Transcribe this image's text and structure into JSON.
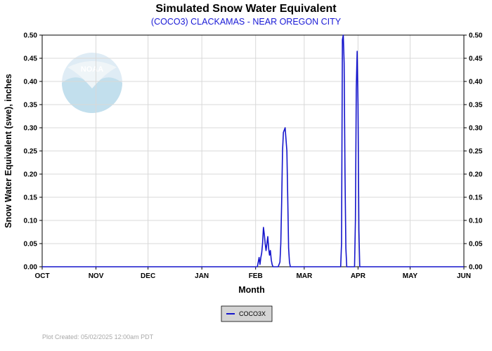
{
  "chart_data": {
    "type": "line",
    "title": "Simulated Snow Water Equivalent",
    "subtitle": "(COCO3) CLACKAMAS - NEAR OREGON CITY",
    "xlabel": "Month",
    "ylabel": "Snow Water Equivalent (swe),  inches",
    "x_tick_labels": [
      "OCT",
      "NOV",
      "DEC",
      "JAN",
      "FEB",
      "MAR",
      "APR",
      "MAY",
      "JUN"
    ],
    "y_tick_labels": [
      "0.00",
      "0.05",
      "0.10",
      "0.15",
      "0.20",
      "0.25",
      "0.30",
      "0.35",
      "0.40",
      "0.45",
      "0.50"
    ],
    "ylim": [
      0,
      0.5
    ],
    "x_axis": "days since Oct 1 (OCT=0 ... JUN=243)",
    "grid": true,
    "legend_position": "bottom-center",
    "footer": "Plot Created: 05/02/2025 12:00am PDT",
    "colors": {
      "series": "#1515cc",
      "grid": "#d8d8d8"
    },
    "series": [
      {
        "name": "COCO3X",
        "x": [
          0,
          123,
          124,
          125,
          125.5,
          126,
          126.5,
          127,
          127.5,
          128,
          128.5,
          129,
          129.5,
          130,
          130.5,
          131,
          131.5,
          132,
          132.5,
          133,
          134,
          135,
          136,
          137,
          137.5,
          138,
          138.5,
          139,
          140,
          141,
          141.5,
          142,
          142.5,
          143,
          143.5,
          144,
          144.5,
          145,
          146,
          147,
          170,
          172,
          172.5,
          173,
          173.5,
          174,
          174.5,
          175,
          175.5,
          176,
          176.5,
          177,
          178,
          179,
          180,
          180.5,
          181,
          181.5,
          182,
          182.5,
          183,
          183.5,
          184,
          184.5,
          185,
          186,
          243
        ],
        "y": [
          0,
          0,
          0,
          0.02,
          0.005,
          0.02,
          0.03,
          0.05,
          0.085,
          0.07,
          0.05,
          0.035,
          0.05,
          0.065,
          0.04,
          0.025,
          0.035,
          0.015,
          0.005,
          0,
          0,
          0,
          0,
          0.01,
          0.05,
          0.14,
          0.25,
          0.29,
          0.3,
          0.25,
          0.15,
          0.04,
          0.01,
          0,
          0,
          0,
          0,
          0,
          0,
          0,
          0,
          0,
          0.05,
          0.49,
          0.5,
          0.44,
          0.2,
          0.04,
          0,
          0,
          0,
          0,
          0,
          0,
          0,
          0.1,
          0.385,
          0.465,
          0.35,
          0.08,
          0,
          0,
          0,
          0,
          0,
          0,
          0
        ]
      }
    ]
  }
}
